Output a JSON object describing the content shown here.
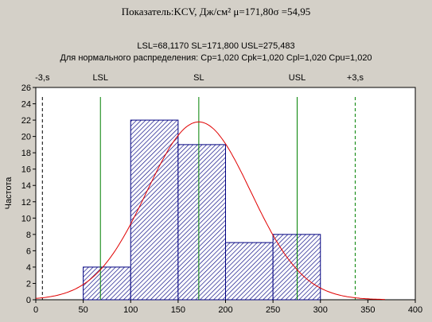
{
  "chart_data": {
    "type": "bar",
    "title": "Показатель:KCV, Дж/см² μ=171,80σ =54,95",
    "subtitle_line1": "LSL=68,1170 SL=171,800 USL=275,483",
    "subtitle_line2": "Для нормального распределения: Cp=1,020 Cpk=1,020 Cpl=1,020 Cpu=1,020",
    "ylabel": "Частота",
    "xlabel": "",
    "xlim": [
      0,
      400
    ],
    "ylim": [
      0,
      26
    ],
    "x_ticks": [
      "0",
      "50",
      "100",
      "150",
      "200",
      "250",
      "300",
      "350",
      "400"
    ],
    "y_ticks": [
      "0",
      "2",
      "4",
      "6",
      "8",
      "10",
      "12",
      "14",
      "16",
      "18",
      "20",
      "22",
      "24",
      "26"
    ],
    "bins": [
      {
        "from": 50,
        "to": 100,
        "count": 4
      },
      {
        "from": 100,
        "to": 150,
        "count": 22
      },
      {
        "from": 150,
        "to": 200,
        "count": 19
      },
      {
        "from": 200,
        "to": 250,
        "count": 7
      },
      {
        "from": 250,
        "to": 300,
        "count": 8
      }
    ],
    "normal_curve": {
      "mean": 171.8,
      "sd": 54.95,
      "n": 60,
      "bin_width": 50
    },
    "spec_lines": [
      {
        "label": "-3,s",
        "value": 6.95,
        "style": "dashed",
        "color": "#000000"
      },
      {
        "label": "LSL",
        "value": 68.117,
        "style": "solid",
        "color": "#008000"
      },
      {
        "label": "SL",
        "value": 171.8,
        "style": "solid",
        "color": "#008000"
      },
      {
        "label": "USL",
        "value": 275.483,
        "style": "solid",
        "color": "#008000"
      },
      {
        "label": "+3,s",
        "value": 336.65,
        "style": "dashed",
        "color": "#008000"
      }
    ],
    "colors": {
      "bar_fill": "#ffffff",
      "bar_hatch": "#000080",
      "curve": "#e00000",
      "plot_bg": "#ffffff",
      "window_bg": "#d4d0c8"
    }
  }
}
